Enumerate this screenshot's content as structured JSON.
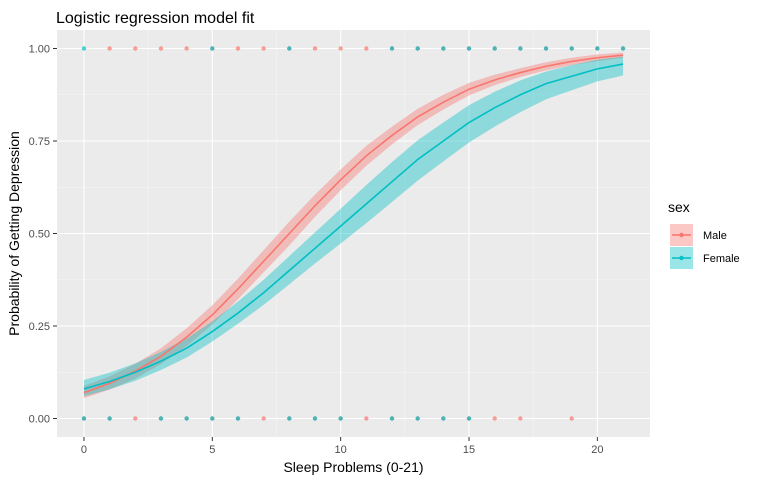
{
  "chart_data": {
    "type": "line",
    "title": "Logistic regression model fit",
    "xlabel": "Sleep Problems (0-21)",
    "ylabel": "Probability of Getting Depression",
    "xlim": [
      -1.05,
      22.05
    ],
    "ylim": [
      -0.05,
      1.05
    ],
    "x_ticks": [
      0,
      5,
      10,
      15,
      20
    ],
    "x_tick_labels": [
      "0",
      "5",
      "10",
      "15",
      "20"
    ],
    "y_ticks": [
      0,
      0.25,
      0.5,
      0.75,
      1
    ],
    "y_tick_labels": [
      "0.00",
      "0.25",
      "0.50",
      "0.75",
      "1.00"
    ],
    "grid": true,
    "legend": {
      "title": "sex",
      "position": "right"
    },
    "colors": {
      "panel_background": "#ebebeb",
      "grid_major": "#ffffff",
      "grid_minor": "#f5f5f5",
      "male": "#f8766d",
      "female": "#00bfc4"
    },
    "series": [
      {
        "name": "Male",
        "color": "#f8766d",
        "curve": {
          "x": [
            0,
            1,
            2,
            3,
            4,
            5,
            6,
            7,
            8,
            9,
            10,
            11,
            12,
            13,
            14,
            15,
            16,
            17,
            18,
            19,
            20,
            21
          ],
          "y": [
            0.07,
            0.095,
            0.128,
            0.168,
            0.22,
            0.28,
            0.35,
            0.425,
            0.5,
            0.575,
            0.645,
            0.71,
            0.765,
            0.815,
            0.855,
            0.89,
            0.915,
            0.935,
            0.952,
            0.965,
            0.975,
            0.982
          ],
          "lower": [
            0.055,
            0.078,
            0.108,
            0.147,
            0.196,
            0.254,
            0.322,
            0.395,
            0.468,
            0.545,
            0.617,
            0.683,
            0.741,
            0.793,
            0.835,
            0.873,
            0.901,
            0.923,
            0.941,
            0.955,
            0.966,
            0.975
          ],
          "upper": [
            0.088,
            0.114,
            0.148,
            0.19,
            0.244,
            0.306,
            0.378,
            0.455,
            0.532,
            0.605,
            0.673,
            0.737,
            0.789,
            0.837,
            0.875,
            0.907,
            0.929,
            0.947,
            0.963,
            0.975,
            0.984,
            0.989
          ]
        },
        "points_y1": [
          1,
          2,
          3,
          4,
          5,
          6,
          7,
          8,
          9,
          10,
          11,
          12,
          13,
          14,
          15,
          16,
          17,
          18,
          19,
          20,
          21
        ],
        "points_y0": [
          0,
          1,
          2,
          3,
          4,
          5,
          6,
          7,
          8,
          9,
          10,
          11,
          12,
          13,
          14,
          15,
          16,
          17,
          19
        ]
      },
      {
        "name": "Female",
        "color": "#00bfc4",
        "curve": {
          "x": [
            0,
            1,
            2,
            3,
            4,
            5,
            6,
            7,
            8,
            9,
            10,
            11,
            12,
            13,
            14,
            15,
            16,
            17,
            18,
            19,
            20,
            21
          ],
          "y": [
            0.08,
            0.1,
            0.125,
            0.155,
            0.19,
            0.235,
            0.285,
            0.34,
            0.4,
            0.46,
            0.52,
            0.58,
            0.64,
            0.7,
            0.75,
            0.8,
            0.84,
            0.875,
            0.905,
            0.925,
            0.945,
            0.958
          ],
          "lower": [
            0.06,
            0.079,
            0.102,
            0.131,
            0.165,
            0.208,
            0.256,
            0.307,
            0.363,
            0.419,
            0.473,
            0.528,
            0.585,
            0.643,
            0.695,
            0.746,
            0.789,
            0.828,
            0.863,
            0.887,
            0.911,
            0.927
          ],
          "upper": [
            0.104,
            0.124,
            0.149,
            0.18,
            0.216,
            0.263,
            0.316,
            0.375,
            0.439,
            0.503,
            0.567,
            0.631,
            0.693,
            0.752,
            0.8,
            0.847,
            0.883,
            0.914,
            0.938,
            0.955,
            0.97,
            0.978
          ]
        },
        "points_y1": [
          0,
          5,
          8,
          12,
          13,
          14,
          15,
          16,
          17,
          18,
          19,
          20,
          21
        ],
        "points_y0": [
          0,
          1,
          3,
          4,
          5,
          6,
          8,
          9,
          10,
          12,
          13,
          14,
          15
        ]
      }
    ]
  }
}
